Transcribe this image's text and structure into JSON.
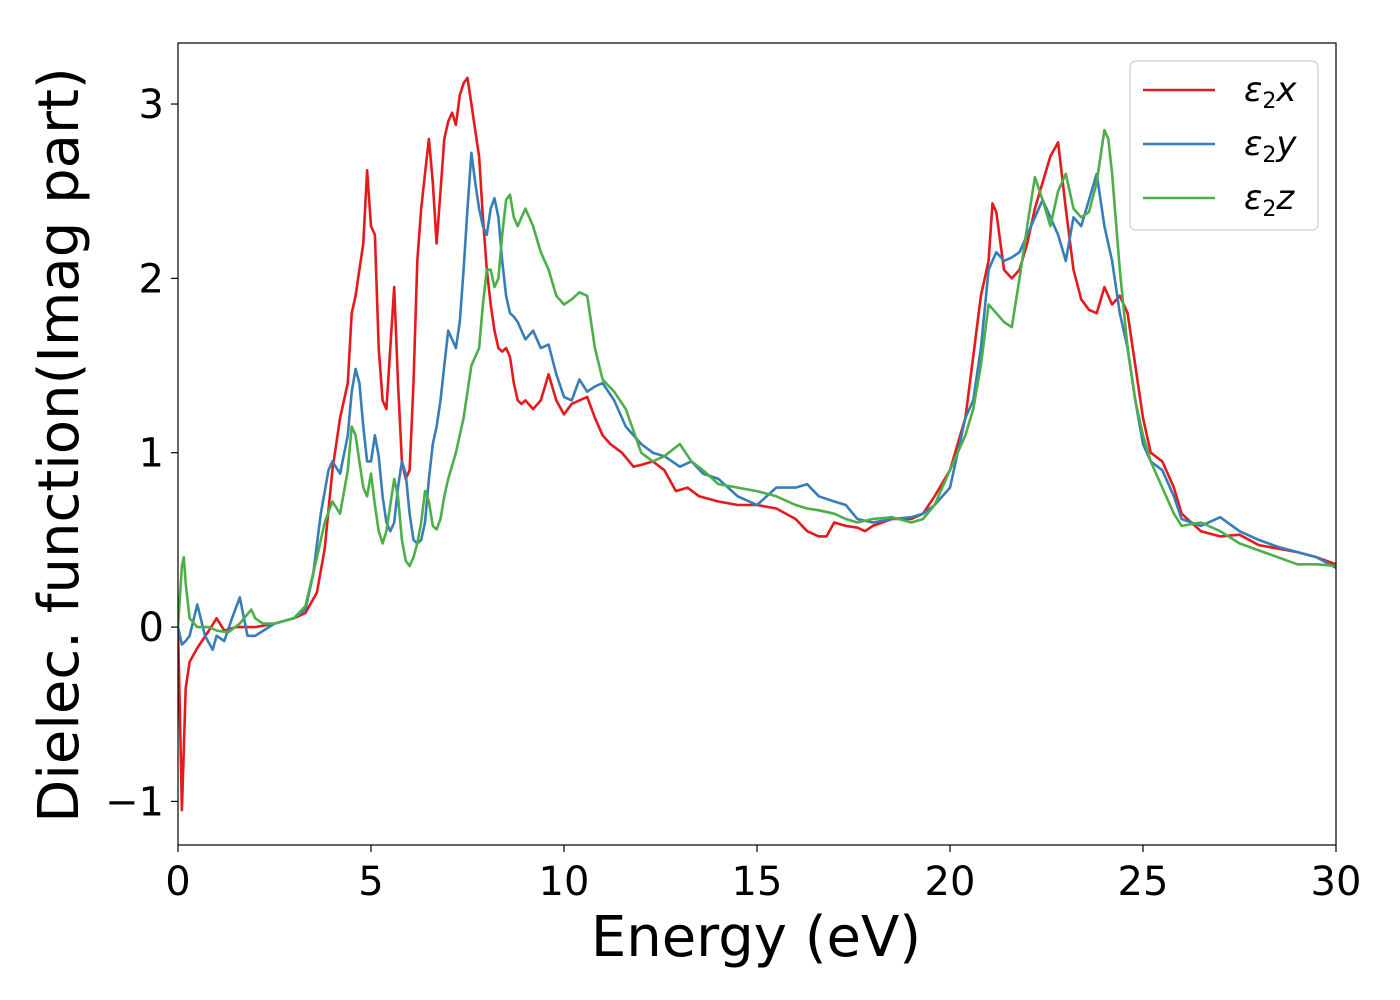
{
  "chart_data": {
    "type": "line",
    "xlabel": "Energy (eV)",
    "ylabel": "Dielec. function(Imag part)",
    "xlim": [
      0,
      30
    ],
    "ylim": [
      -1.25,
      3.35
    ],
    "xticks": [
      0,
      5,
      10,
      15,
      20,
      25,
      30
    ],
    "xtick_labels": [
      "0",
      "5",
      "10",
      "15",
      "20",
      "25",
      "30"
    ],
    "yticks": [
      -1,
      0,
      1,
      2,
      3
    ],
    "ytick_labels": [
      "−1",
      "0",
      "1",
      "2",
      "3"
    ],
    "grid": false,
    "legend_position": "top-right",
    "series": [
      {
        "name": "ε₂x",
        "name_base": "ε",
        "name_sub": "2",
        "name_suffix": "x",
        "color": "#e41a1c",
        "x": [
          0.0,
          0.05,
          0.1,
          0.2,
          0.3,
          0.5,
          0.8,
          1.0,
          1.2,
          1.5,
          2.0,
          2.5,
          3.0,
          3.3,
          3.6,
          3.8,
          4.0,
          4.2,
          4.4,
          4.5,
          4.6,
          4.7,
          4.8,
          4.9,
          5.0,
          5.1,
          5.2,
          5.3,
          5.4,
          5.5,
          5.6,
          5.7,
          5.8,
          5.9,
          6.0,
          6.1,
          6.2,
          6.3,
          6.4,
          6.5,
          6.6,
          6.7,
          6.8,
          6.9,
          7.0,
          7.1,
          7.2,
          7.3,
          7.4,
          7.5,
          7.6,
          7.7,
          7.8,
          7.9,
          8.0,
          8.1,
          8.2,
          8.3,
          8.4,
          8.5,
          8.6,
          8.7,
          8.8,
          8.9,
          9.0,
          9.2,
          9.4,
          9.6,
          9.8,
          10.0,
          10.2,
          10.4,
          10.6,
          10.8,
          11.0,
          11.2,
          11.5,
          11.8,
          12.0,
          12.3,
          12.6,
          12.9,
          13.2,
          13.5,
          14.0,
          14.5,
          15.0,
          15.5,
          16.0,
          16.3,
          16.6,
          16.8,
          17.0,
          17.3,
          17.6,
          17.8,
          18.0,
          18.5,
          19.0,
          19.3,
          19.6,
          20.0,
          20.2,
          20.4,
          20.6,
          20.8,
          21.0,
          21.1,
          21.2,
          21.4,
          21.6,
          21.8,
          22.0,
          22.2,
          22.4,
          22.6,
          22.8,
          23.0,
          23.2,
          23.4,
          23.6,
          23.8,
          24.0,
          24.2,
          24.4,
          24.6,
          24.8,
          25.0,
          25.2,
          25.5,
          25.8,
          26.0,
          26.5,
          27.0,
          27.5,
          28.0,
          28.5,
          29.0,
          29.5,
          30.0
        ],
        "y": [
          0.0,
          -0.5,
          -1.05,
          -0.35,
          -0.2,
          -0.12,
          -0.02,
          0.05,
          -0.02,
          0.0,
          0.0,
          0.02,
          0.05,
          0.08,
          0.2,
          0.45,
          0.9,
          1.2,
          1.4,
          1.8,
          1.9,
          2.05,
          2.2,
          2.62,
          2.3,
          2.25,
          1.6,
          1.3,
          1.25,
          1.6,
          1.95,
          1.4,
          0.95,
          0.85,
          0.9,
          1.4,
          2.1,
          2.4,
          2.6,
          2.8,
          2.55,
          2.2,
          2.5,
          2.8,
          2.9,
          2.95,
          2.88,
          3.05,
          3.12,
          3.15,
          3.0,
          2.85,
          2.7,
          2.35,
          2.05,
          1.85,
          1.7,
          1.6,
          1.58,
          1.6,
          1.55,
          1.4,
          1.3,
          1.28,
          1.3,
          1.25,
          1.3,
          1.45,
          1.3,
          1.22,
          1.28,
          1.3,
          1.32,
          1.2,
          1.1,
          1.05,
          1.0,
          0.92,
          0.93,
          0.95,
          0.9,
          0.78,
          0.8,
          0.75,
          0.72,
          0.7,
          0.7,
          0.68,
          0.62,
          0.55,
          0.52,
          0.52,
          0.6,
          0.58,
          0.57,
          0.55,
          0.58,
          0.62,
          0.62,
          0.65,
          0.75,
          0.9,
          1.05,
          1.2,
          1.55,
          1.9,
          2.1,
          2.43,
          2.38,
          2.05,
          2.0,
          2.05,
          2.2,
          2.4,
          2.55,
          2.7,
          2.78,
          2.4,
          2.05,
          1.88,
          1.82,
          1.8,
          1.95,
          1.85,
          1.9,
          1.8,
          1.5,
          1.2,
          1.0,
          0.95,
          0.8,
          0.65,
          0.55,
          0.52,
          0.53,
          0.47,
          0.45,
          0.43,
          0.4,
          0.36
        ]
      },
      {
        "name": "ε₂y",
        "name_base": "ε",
        "name_sub": "2",
        "name_suffix": "y",
        "color": "#377eb8",
        "x": [
          0.0,
          0.1,
          0.2,
          0.3,
          0.5,
          0.7,
          0.9,
          1.0,
          1.2,
          1.4,
          1.6,
          1.8,
          2.0,
          2.5,
          3.0,
          3.3,
          3.5,
          3.7,
          3.9,
          4.0,
          4.2,
          4.4,
          4.5,
          4.6,
          4.7,
          4.8,
          4.9,
          5.0,
          5.1,
          5.2,
          5.3,
          5.4,
          5.5,
          5.6,
          5.7,
          5.8,
          5.9,
          6.0,
          6.1,
          6.2,
          6.3,
          6.4,
          6.5,
          6.6,
          6.7,
          6.8,
          6.9,
          7.0,
          7.1,
          7.2,
          7.3,
          7.4,
          7.5,
          7.6,
          7.7,
          7.8,
          7.9,
          8.0,
          8.1,
          8.2,
          8.3,
          8.4,
          8.5,
          8.6,
          8.7,
          8.8,
          9.0,
          9.2,
          9.4,
          9.6,
          9.8,
          10.0,
          10.2,
          10.4,
          10.6,
          10.8,
          11.0,
          11.3,
          11.6,
          12.0,
          12.3,
          12.6,
          13.0,
          13.3,
          13.6,
          14.0,
          14.5,
          15.0,
          15.5,
          16.0,
          16.3,
          16.6,
          17.0,
          17.3,
          17.6,
          18.0,
          18.5,
          19.0,
          19.3,
          19.6,
          20.0,
          20.2,
          20.4,
          20.6,
          20.8,
          21.0,
          21.2,
          21.4,
          21.6,
          21.8,
          22.0,
          22.2,
          22.4,
          22.6,
          22.8,
          23.0,
          23.2,
          23.4,
          23.6,
          23.8,
          24.0,
          24.2,
          24.4,
          24.6,
          24.8,
          25.0,
          25.2,
          25.5,
          25.8,
          26.0,
          26.5,
          27.0,
          27.5,
          28.0,
          28.5,
          29.0,
          29.5,
          30.0
        ],
        "y": [
          0.0,
          -0.1,
          -0.08,
          -0.05,
          0.13,
          -0.05,
          -0.13,
          -0.05,
          -0.08,
          0.05,
          0.17,
          -0.05,
          -0.05,
          0.02,
          0.05,
          0.1,
          0.3,
          0.65,
          0.9,
          0.95,
          0.88,
          1.1,
          1.35,
          1.48,
          1.4,
          1.15,
          0.95,
          0.95,
          1.1,
          0.98,
          0.75,
          0.6,
          0.55,
          0.6,
          0.8,
          0.95,
          0.88,
          0.65,
          0.5,
          0.48,
          0.5,
          0.6,
          0.85,
          1.05,
          1.15,
          1.3,
          1.5,
          1.7,
          1.65,
          1.6,
          1.75,
          2.05,
          2.4,
          2.72,
          2.55,
          2.4,
          2.3,
          2.25,
          2.4,
          2.46,
          2.35,
          2.1,
          1.9,
          1.8,
          1.78,
          1.75,
          1.65,
          1.7,
          1.6,
          1.62,
          1.45,
          1.32,
          1.3,
          1.42,
          1.35,
          1.38,
          1.4,
          1.3,
          1.15,
          1.05,
          1.0,
          0.98,
          0.92,
          0.95,
          0.88,
          0.85,
          0.75,
          0.7,
          0.8,
          0.8,
          0.82,
          0.75,
          0.72,
          0.7,
          0.62,
          0.6,
          0.62,
          0.63,
          0.65,
          0.7,
          0.8,
          1.0,
          1.2,
          1.3,
          1.6,
          2.05,
          2.15,
          2.1,
          2.12,
          2.15,
          2.25,
          2.35,
          2.45,
          2.35,
          2.25,
          2.1,
          2.35,
          2.3,
          2.45,
          2.6,
          2.3,
          2.1,
          1.8,
          1.6,
          1.3,
          1.05,
          0.95,
          0.9,
          0.75,
          0.62,
          0.58,
          0.63,
          0.55,
          0.5,
          0.46,
          0.43,
          0.4,
          0.34
        ]
      },
      {
        "name": "ε₂z",
        "name_base": "ε",
        "name_sub": "2",
        "name_suffix": "z",
        "color": "#4daf4a",
        "x": [
          0.0,
          0.1,
          0.15,
          0.2,
          0.3,
          0.5,
          0.8,
          1.0,
          1.3,
          1.6,
          1.9,
          2.0,
          2.2,
          2.5,
          3.0,
          3.3,
          3.6,
          3.8,
          4.0,
          4.2,
          4.4,
          4.5,
          4.6,
          4.7,
          4.8,
          4.9,
          5.0,
          5.1,
          5.2,
          5.3,
          5.4,
          5.5,
          5.6,
          5.7,
          5.8,
          5.9,
          6.0,
          6.1,
          6.2,
          6.3,
          6.4,
          6.5,
          6.6,
          6.7,
          6.8,
          6.9,
          7.0,
          7.2,
          7.4,
          7.6,
          7.8,
          7.9,
          8.0,
          8.1,
          8.2,
          8.3,
          8.4,
          8.5,
          8.6,
          8.7,
          8.8,
          8.9,
          9.0,
          9.2,
          9.4,
          9.6,
          9.8,
          10.0,
          10.2,
          10.4,
          10.6,
          10.8,
          11.0,
          11.3,
          11.6,
          12.0,
          12.3,
          12.6,
          13.0,
          13.3,
          13.6,
          14.0,
          14.5,
          15.0,
          15.5,
          16.0,
          16.3,
          16.6,
          17.0,
          17.3,
          17.6,
          18.0,
          18.5,
          19.0,
          19.3,
          19.6,
          20.0,
          20.2,
          20.4,
          20.6,
          20.8,
          21.0,
          21.2,
          21.4,
          21.6,
          21.8,
          22.0,
          22.2,
          22.4,
          22.6,
          22.8,
          23.0,
          23.2,
          23.4,
          23.6,
          23.8,
          24.0,
          24.1,
          24.2,
          24.4,
          24.6,
          24.8,
          25.0,
          25.2,
          25.5,
          25.8,
          26.0,
          26.5,
          27.0,
          27.5,
          28.0,
          28.5,
          29.0,
          29.5,
          30.0
        ],
        "y": [
          0.0,
          0.35,
          0.4,
          0.25,
          0.05,
          0.0,
          0.0,
          -0.02,
          -0.03,
          0.02,
          0.1,
          0.05,
          0.02,
          0.02,
          0.05,
          0.12,
          0.4,
          0.6,
          0.72,
          0.65,
          0.9,
          1.15,
          1.1,
          0.95,
          0.8,
          0.75,
          0.88,
          0.7,
          0.55,
          0.48,
          0.55,
          0.7,
          0.85,
          0.75,
          0.5,
          0.38,
          0.35,
          0.4,
          0.48,
          0.6,
          0.78,
          0.72,
          0.58,
          0.56,
          0.62,
          0.75,
          0.85,
          1.0,
          1.2,
          1.5,
          1.6,
          1.85,
          2.05,
          2.05,
          1.95,
          2.0,
          2.25,
          2.45,
          2.48,
          2.35,
          2.3,
          2.35,
          2.4,
          2.3,
          2.15,
          2.05,
          1.9,
          1.85,
          1.88,
          1.92,
          1.9,
          1.6,
          1.42,
          1.35,
          1.25,
          1.0,
          0.95,
          0.98,
          1.05,
          0.95,
          0.9,
          0.82,
          0.8,
          0.78,
          0.75,
          0.7,
          0.68,
          0.67,
          0.65,
          0.62,
          0.6,
          0.62,
          0.63,
          0.6,
          0.62,
          0.7,
          0.9,
          1.0,
          1.1,
          1.25,
          1.5,
          1.85,
          1.8,
          1.75,
          1.72,
          2.0,
          2.3,
          2.58,
          2.45,
          2.3,
          2.5,
          2.6,
          2.4,
          2.35,
          2.38,
          2.55,
          2.85,
          2.8,
          2.6,
          2.05,
          1.6,
          1.3,
          1.1,
          0.95,
          0.8,
          0.65,
          0.58,
          0.6,
          0.55,
          0.48,
          0.44,
          0.4,
          0.36,
          0.36,
          0.35
        ]
      }
    ]
  }
}
